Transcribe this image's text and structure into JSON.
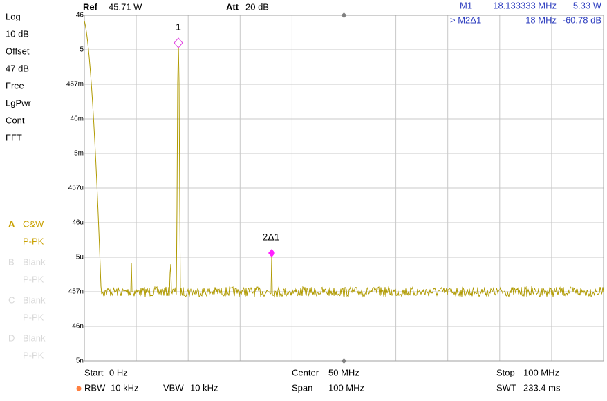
{
  "settings": {
    "scale": "Log",
    "scale_div": "10 dB",
    "offset_label": "Offset",
    "offset": "47 dB",
    "trigger": "Free",
    "detector_mode": "LgPwr",
    "sweep": "Cont",
    "mode": "FFT"
  },
  "traces": [
    {
      "letter": "A",
      "state": "C&W",
      "detector": "P-PK"
    },
    {
      "letter": "B",
      "state": "Blank",
      "detector": "P-PK"
    },
    {
      "letter": "C",
      "state": "Blank",
      "detector": "P-PK"
    },
    {
      "letter": "D",
      "state": "Blank",
      "detector": "P-PK"
    }
  ],
  "header": {
    "ref_label": "Ref",
    "ref": "45.71 W",
    "att_label": "Att",
    "att": "20 dB"
  },
  "markers": [
    {
      "name": "M1",
      "freq": "18.133333 MHz",
      "value": "5.33 W"
    },
    {
      "name": "> M2Δ1",
      "freq": "18 MHz",
      "value": "-60.78 dB"
    }
  ],
  "y_labels": [
    "46",
    "5",
    "457m",
    "46m",
    "5m",
    "457u",
    "46u",
    "5u",
    "457n",
    "46n",
    "5n"
  ],
  "marker_tags": [
    "1",
    "2Δ1"
  ],
  "footer": {
    "start_label": "Start",
    "start": "0 Hz",
    "center_label": "Center",
    "center": "50 MHz",
    "stop_label": "Stop",
    "stop": "100 MHz",
    "rbw_label": "RBW",
    "rbw": "10 kHz",
    "vbw_label": "VBW",
    "vbw": "10 kHz",
    "span_label": "Span",
    "span": "100 MHz",
    "swt_label": "SWT",
    "swt": "233.4 ms"
  }
}
